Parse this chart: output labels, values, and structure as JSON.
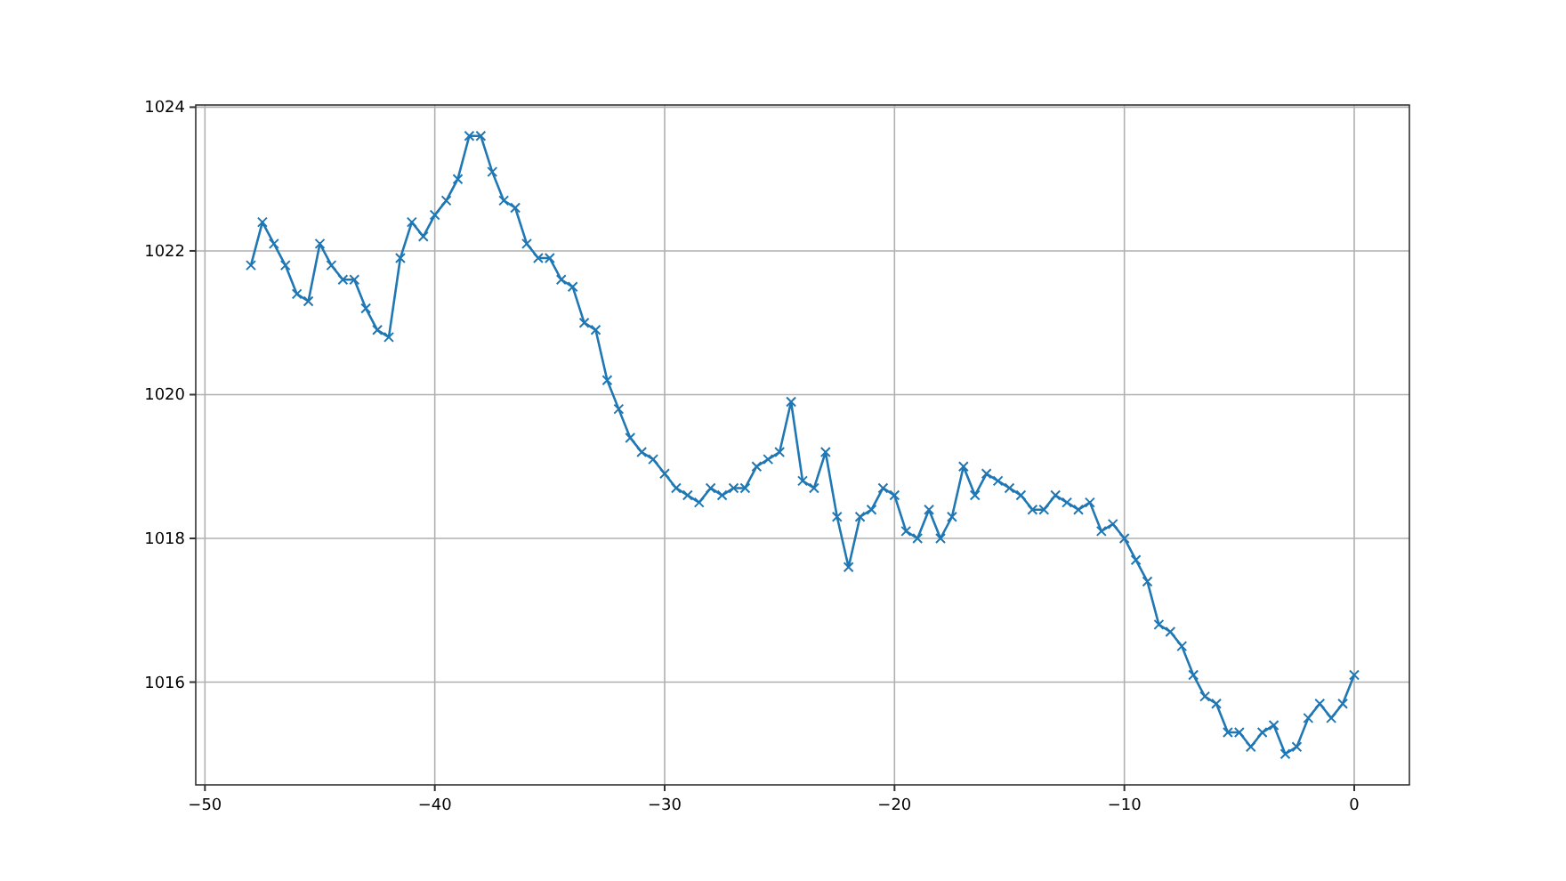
{
  "chart_data": {
    "type": "line",
    "color": "#1f77b4",
    "marker": "cross",
    "grid": true,
    "x": [
      -48,
      -47.5,
      -47,
      -46.5,
      -46,
      -45.5,
      -45,
      -44.5,
      -44,
      -43.5,
      -43,
      -42.5,
      -42,
      -41.5,
      -41,
      -40.5,
      -40,
      -39.5,
      -39,
      -38.5,
      -38,
      -37.5,
      -37,
      -36.5,
      -36,
      -35.5,
      -35,
      -34.5,
      -34,
      -33.5,
      -33,
      -32.5,
      -32,
      -31.5,
      -31,
      -30.5,
      -30,
      -29.5,
      -29,
      -28.5,
      -28,
      -27.5,
      -27,
      -26.5,
      -26,
      -25.5,
      -25,
      -24.5,
      -24,
      -23.5,
      -23,
      -22.5,
      -22,
      -21.5,
      -21,
      -20.5,
      -20,
      -19.5,
      -19,
      -18.5,
      -18,
      -17.5,
      -17,
      -16.5,
      -16,
      -15.5,
      -15,
      -14.5,
      -14,
      -13.5,
      -13,
      -12.5,
      -12,
      -11.5,
      -11,
      -10.5,
      -10,
      -9.5,
      -9,
      -8.5,
      -8,
      -7.5,
      -7,
      -6.5,
      -6,
      -5.5,
      -5,
      -4.5,
      -4,
      -3.5,
      -3,
      -2.5,
      -2,
      -1.5,
      -1,
      -0.5,
      0
    ],
    "values": [
      1021.8,
      1022.4,
      1022.1,
      1021.8,
      1021.4,
      1021.3,
      1022.1,
      1021.8,
      1021.6,
      1021.6,
      1021.2,
      1020.9,
      1020.8,
      1021.9,
      1022.4,
      1022.2,
      1022.5,
      1022.7,
      1023.0,
      1023.6,
      1023.6,
      1023.1,
      1022.7,
      1022.6,
      1022.1,
      1021.9,
      1021.9,
      1021.6,
      1021.5,
      1021.0,
      1020.9,
      1020.2,
      1019.8,
      1019.4,
      1019.2,
      1019.1,
      1018.9,
      1018.7,
      1018.6,
      1018.5,
      1018.7,
      1018.6,
      1018.7,
      1018.7,
      1019.0,
      1019.1,
      1019.2,
      1019.9,
      1018.8,
      1018.7,
      1019.2,
      1018.3,
      1017.6,
      1018.3,
      1018.4,
      1018.7,
      1018.6,
      1018.1,
      1018.0,
      1018.4,
      1018.0,
      1018.3,
      1019.0,
      1018.6,
      1018.9,
      1018.8,
      1018.7,
      1018.6,
      1018.4,
      1018.4,
      1018.6,
      1018.5,
      1018.4,
      1018.5,
      1018.1,
      1018.2,
      1018.0,
      1017.7,
      1017.4,
      1016.8,
      1016.7,
      1016.5,
      1016.1,
      1015.8,
      1015.7,
      1015.3,
      1015.3,
      1015.1,
      1015.3,
      1015.4,
      1015.0,
      1015.1,
      1015.5,
      1015.7,
      1015.5,
      1015.7,
      1016.1
    ],
    "xlim": [
      -50.4,
      2.4
    ],
    "xticks": [
      -50,
      -40,
      -30,
      -20,
      -10,
      0
    ],
    "ylim": [
      1014.57,
      1024.03
    ],
    "yticks": [
      1016,
      1018,
      1020,
      1022,
      1024
    ]
  }
}
